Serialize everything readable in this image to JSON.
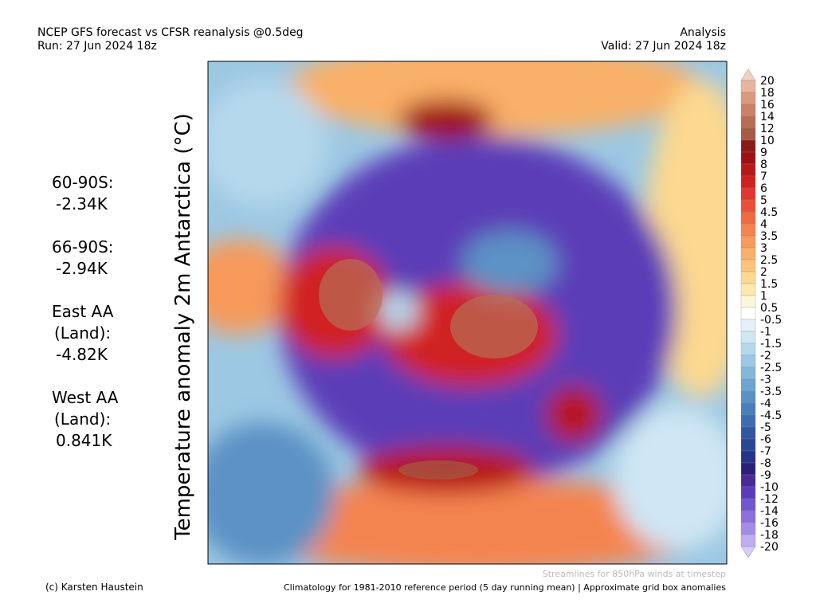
{
  "header": {
    "title": "NCEP GFS forecast vs CFSR reanalysis @0.5deg",
    "run": "Run: 27 Jun 2024 18z",
    "mode": "Analysis",
    "valid": "Valid: 27 Jun 2024 18z"
  },
  "map": {
    "ylabel": "Temperature anomaly 2m Antarctica (°C)"
  },
  "stats": [
    {
      "lines": [
        "60-90S:"
      ],
      "value": "-2.34K"
    },
    {
      "lines": [
        "66-90S:"
      ],
      "value": "-2.94K"
    },
    {
      "lines": [
        "East AA",
        "(Land):"
      ],
      "value": "-4.82K"
    },
    {
      "lines": [
        "West AA",
        "(Land):"
      ],
      "value": "0.841K"
    }
  ],
  "colorbar": {
    "labels": [
      20,
      18,
      16,
      14,
      12,
      10,
      9,
      8,
      7,
      6,
      5,
      4.5,
      4,
      3.5,
      3,
      2.5,
      2,
      1.5,
      1,
      0.5,
      -0.5,
      -1,
      -1.5,
      -2,
      -2.5,
      -3,
      -3.5,
      -4,
      -4.5,
      -5,
      -6,
      -7,
      -8,
      -9,
      -10,
      -12,
      -14,
      -16,
      -18,
      -20
    ],
    "colors": [
      "#e9b4a0",
      "#d99a80",
      "#c98268",
      "#b86e55",
      "#a55a45",
      "#8b1a1a",
      "#a01010",
      "#b81818",
      "#d02020",
      "#e03830",
      "#ea5038",
      "#f06a40",
      "#f48450",
      "#f79a5c",
      "#f9b068",
      "#fbc47a",
      "#fcd890",
      "#fde9b0",
      "#fef6d8",
      "#ffffff",
      "#e4f1fa",
      "#cfe6f4",
      "#b5d8ec",
      "#9cc8e3",
      "#84b7da",
      "#6fa5d0",
      "#5b92c5",
      "#4b7fbb",
      "#3e6cb0",
      "#3257a2",
      "#2a4594",
      "#253388",
      "#2b1f7a",
      "#4a2a9a",
      "#5b3cb8",
      "#7355cf",
      "#8b70dc",
      "#a48ce6",
      "#bfaef0"
    ]
  },
  "footer": {
    "credit": "(c) Karsten Haustein",
    "streamlines": "Streamlines for 850hPa winds at timestep",
    "note": "Climatology for 1981-2010 reference period (5 day running mean) | Approximate grid box anomalies"
  }
}
